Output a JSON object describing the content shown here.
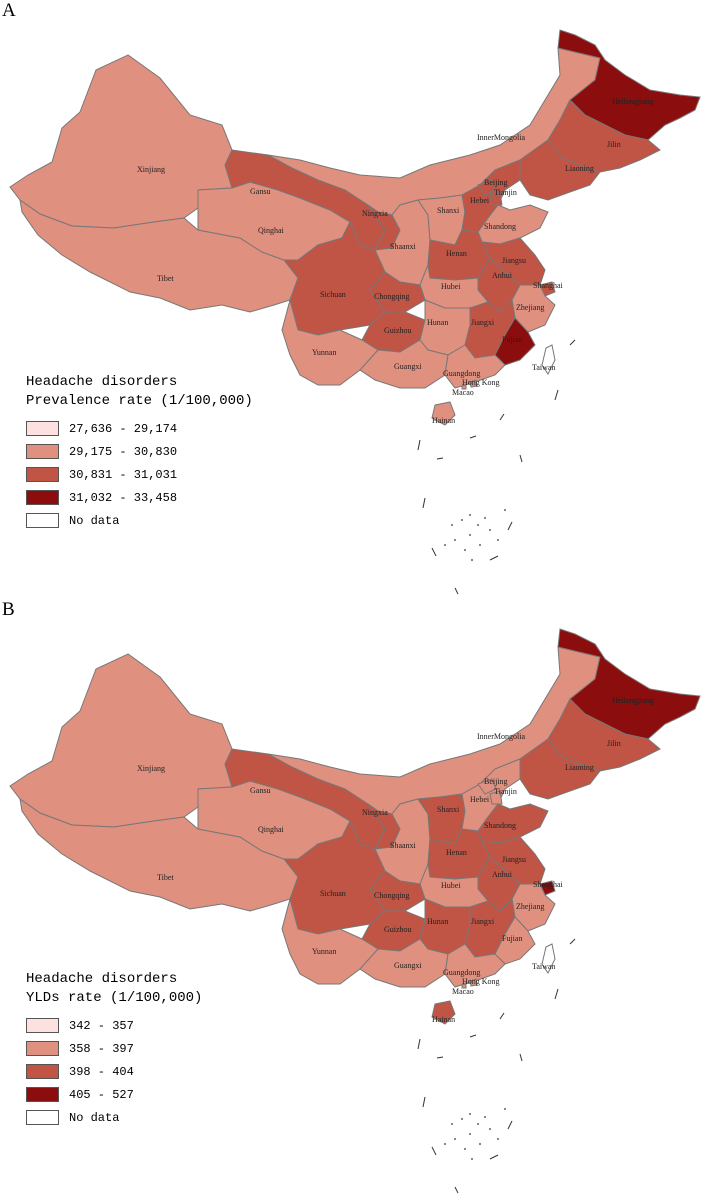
{
  "panels": [
    {
      "letter": "A",
      "legend_title": "Headache disorders",
      "legend_subtitle": "Prevalence rate (1/100,000)",
      "legend": [
        {
          "label": "27,636 - 29,174",
          "color": "#fde0e0"
        },
        {
          "label": "29,175 - 30,830",
          "color": "#e0907f"
        },
        {
          "label": "30,831 - 31,031",
          "color": "#c05445"
        },
        {
          "label": "31,032 - 33,458",
          "color": "#8b0d0d"
        },
        {
          "label": "No data",
          "color": "#ffffff"
        }
      ],
      "provinces": [
        {
          "name": "Heilongjiang",
          "class": 4
        },
        {
          "name": "Jilin",
          "class": 3
        },
        {
          "name": "Liaoning",
          "class": 3
        },
        {
          "name": "InnerMongolia",
          "class": 2
        },
        {
          "name": "Xinjiang",
          "class": 2
        },
        {
          "name": "Gansu",
          "class": 3
        },
        {
          "name": "Ningxia",
          "class": 3
        },
        {
          "name": "Qinghai",
          "class": 2
        },
        {
          "name": "Tibet",
          "class": 2
        },
        {
          "name": "Beijing",
          "class": 3
        },
        {
          "name": "Tianjin",
          "class": 3
        },
        {
          "name": "Hebei",
          "class": 3
        },
        {
          "name": "Shanxi",
          "class": 2
        },
        {
          "name": "Shaanxi",
          "class": 2
        },
        {
          "name": "Shandong",
          "class": 2
        },
        {
          "name": "Henan",
          "class": 3
        },
        {
          "name": "Jiangsu",
          "class": 3
        },
        {
          "name": "Anhui",
          "class": 3
        },
        {
          "name": "Shanghai",
          "class": 3
        },
        {
          "name": "Hubei",
          "class": 2
        },
        {
          "name": "Sichuan",
          "class": 3
        },
        {
          "name": "Chongqing",
          "class": 3
        },
        {
          "name": "Zhejiang",
          "class": 2
        },
        {
          "name": "Hunan",
          "class": 2
        },
        {
          "name": "Jiangxi",
          "class": 3
        },
        {
          "name": "Fujian",
          "class": 4
        },
        {
          "name": "Guizhou",
          "class": 3
        },
        {
          "name": "Yunnan",
          "class": 2
        },
        {
          "name": "Guangxi",
          "class": 2
        },
        {
          "name": "Guangdong",
          "class": 2
        },
        {
          "name": "Hong Kong",
          "class": 2
        },
        {
          "name": "Macao",
          "class": 2
        },
        {
          "name": "Taiwan",
          "class": 5
        },
        {
          "name": "Hainan",
          "class": 2
        }
      ]
    },
    {
      "letter": "B",
      "legend_title": "Headache disorders",
      "legend_subtitle": "YLDs rate (1/100,000)",
      "legend": [
        {
          "label": "342 - 357",
          "color": "#fde0e0"
        },
        {
          "label": "358 - 397",
          "color": "#e0907f"
        },
        {
          "label": "398 - 404",
          "color": "#c05445"
        },
        {
          "label": "405 - 527",
          "color": "#8b0d0d"
        },
        {
          "label": "No data",
          "color": "#ffffff"
        }
      ],
      "provinces": [
        {
          "name": "Heilongjiang",
          "class": 4
        },
        {
          "name": "Jilin",
          "class": 3
        },
        {
          "name": "Liaoning",
          "class": 3
        },
        {
          "name": "InnerMongolia",
          "class": 2
        },
        {
          "name": "Xinjiang",
          "class": 2
        },
        {
          "name": "Gansu",
          "class": 3
        },
        {
          "name": "Ningxia",
          "class": 3
        },
        {
          "name": "Qinghai",
          "class": 2
        },
        {
          "name": "Tibet",
          "class": 2
        },
        {
          "name": "Beijing",
          "class": 2
        },
        {
          "name": "Tianjin",
          "class": 2
        },
        {
          "name": "Hebei",
          "class": 2
        },
        {
          "name": "Shanxi",
          "class": 3
        },
        {
          "name": "Shaanxi",
          "class": 2
        },
        {
          "name": "Shandong",
          "class": 3
        },
        {
          "name": "Henan",
          "class": 3
        },
        {
          "name": "Jiangsu",
          "class": 3
        },
        {
          "name": "Anhui",
          "class": 3
        },
        {
          "name": "Shanghai",
          "class": 4
        },
        {
          "name": "Hubei",
          "class": 2
        },
        {
          "name": "Sichuan",
          "class": 3
        },
        {
          "name": "Chongqing",
          "class": 3
        },
        {
          "name": "Zhejiang",
          "class": 2
        },
        {
          "name": "Hunan",
          "class": 3
        },
        {
          "name": "Jiangxi",
          "class": 3
        },
        {
          "name": "Fujian",
          "class": 2
        },
        {
          "name": "Guizhou",
          "class": 3
        },
        {
          "name": "Yunnan",
          "class": 2
        },
        {
          "name": "Guangxi",
          "class": 2
        },
        {
          "name": "Guangdong",
          "class": 2
        },
        {
          "name": "Hong Kong",
          "class": 2
        },
        {
          "name": "Macao",
          "class": 2
        },
        {
          "name": "Taiwan",
          "class": 5
        },
        {
          "name": "Hainan",
          "class": 3
        }
      ]
    }
  ]
}
